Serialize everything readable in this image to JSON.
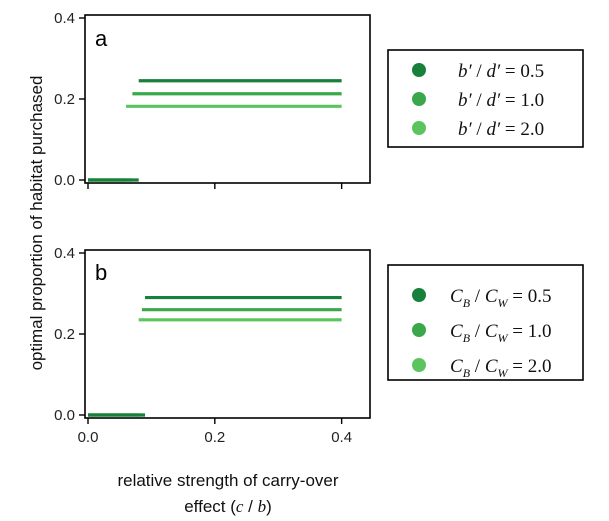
{
  "colors": {
    "series_dark": "#17803a",
    "series_mid": "#3aa84a",
    "series_light": "#5cc45e",
    "axis": "#000000"
  },
  "ylabel": "optimal proportion of habitat purchased",
  "xlabel": "relative strength of carry-over",
  "xlabel_line2_prefix": "effect (",
  "xlabel_c": "c",
  "xlabel_slash": " / ",
  "xlabel_b": "b",
  "xlabel_line2_suffix": ")",
  "chart_data": [
    {
      "type": "line",
      "panel_label": "a",
      "xlim": [
        0,
        0.44
      ],
      "ylim": [
        0,
        0.4
      ],
      "xticks": [
        0.0,
        0.2,
        0.4
      ],
      "xtick_labels": [
        "0.0",
        "0.2",
        "0.4"
      ],
      "yticks": [
        0.0,
        0.2,
        0.4
      ],
      "ytick_labels": [
        "0.0",
        "0.2",
        "0.4"
      ],
      "show_xtick_labels": false,
      "legend_placement": "right",
      "legend_kind": "ratio_prime",
      "series": [
        {
          "name_value": "0.5",
          "color_key": "series_dark",
          "segments": [
            [
              [
                0,
                0
              ],
              [
                0.08,
                0
              ]
            ],
            [
              [
                0.08,
                0.245
              ],
              [
                0.4,
                0.245
              ]
            ]
          ]
        },
        {
          "name_value": "1.0",
          "color_key": "series_mid",
          "segments": [
            [
              [
                0,
                0
              ],
              [
                0.07,
                0
              ]
            ],
            [
              [
                0.07,
                0.213
              ],
              [
                0.4,
                0.213
              ]
            ]
          ]
        },
        {
          "name_value": "2.0",
          "color_key": "series_light",
          "segments": [
            [
              [
                0,
                0
              ],
              [
                0.06,
                0
              ]
            ],
            [
              [
                0.06,
                0.182
              ],
              [
                0.4,
                0.182
              ]
            ]
          ]
        }
      ],
      "legend": {
        "lhs_num": "b′",
        "slash": " / ",
        "lhs_den": "d′",
        "eq": " = "
      }
    },
    {
      "type": "line",
      "panel_label": "b",
      "xlim": [
        0,
        0.44
      ],
      "ylim": [
        0,
        0.4
      ],
      "xticks": [
        0.0,
        0.2,
        0.4
      ],
      "xtick_labels": [
        "0.0",
        "0.2",
        "0.4"
      ],
      "yticks": [
        0.0,
        0.2,
        0.4
      ],
      "ytick_labels": [
        "0.0",
        "0.2",
        "0.4"
      ],
      "show_xtick_labels": true,
      "legend_placement": "right",
      "legend_kind": "ratio_sub",
      "series": [
        {
          "name_value": "0.5",
          "color_key": "series_dark",
          "segments": [
            [
              [
                0,
                0
              ],
              [
                0.09,
                0
              ]
            ],
            [
              [
                0.09,
                0.29
              ],
              [
                0.4,
                0.29
              ]
            ]
          ]
        },
        {
          "name_value": "1.0",
          "color_key": "series_mid",
          "segments": [
            [
              [
                0,
                0
              ],
              [
                0.085,
                0
              ]
            ],
            [
              [
                0.085,
                0.26
              ],
              [
                0.4,
                0.26
              ]
            ]
          ]
        },
        {
          "name_value": "2.0",
          "color_key": "series_light",
          "segments": [
            [
              [
                0,
                0
              ],
              [
                0.08,
                0
              ]
            ],
            [
              [
                0.08,
                0.235
              ],
              [
                0.4,
                0.235
              ]
            ]
          ]
        }
      ],
      "legend": {
        "num": "C",
        "num_sub": "B",
        "slash": " / ",
        "den": "C",
        "den_sub": "W",
        "eq": " = "
      }
    }
  ]
}
